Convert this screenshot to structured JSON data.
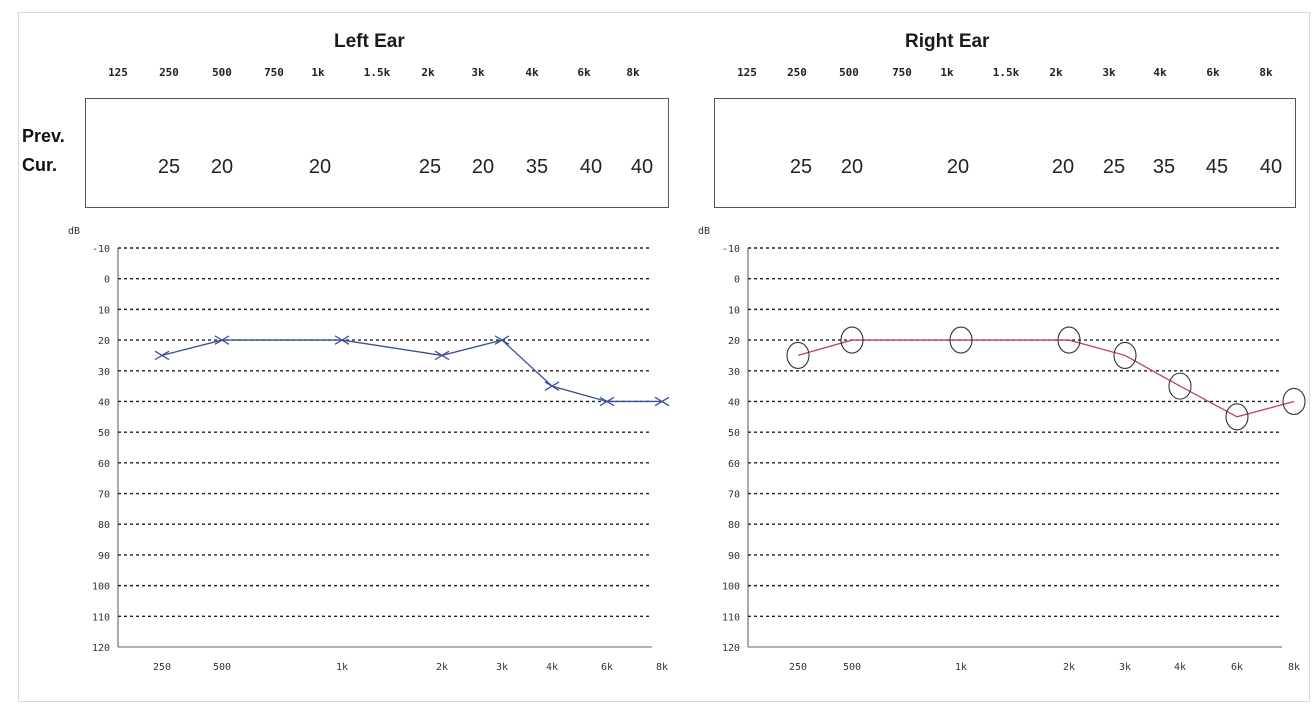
{
  "left": {
    "title": "Left Ear",
    "freq_labels": [
      "125",
      "250",
      "500",
      "750",
      "1k",
      "1.5k",
      "2k",
      "3k",
      "4k",
      "6k",
      "8k"
    ],
    "prev_label": "Prev.",
    "cur_label": "Cur.",
    "current_values": [
      {
        "freq": "250",
        "value": "25"
      },
      {
        "freq": "500",
        "value": "20"
      },
      {
        "freq": "1k",
        "value": "20"
      },
      {
        "freq": "2k",
        "value": "25"
      },
      {
        "freq": "3k",
        "value": "20"
      },
      {
        "freq": "4k",
        "value": "35"
      },
      {
        "freq": "6k",
        "value": "40"
      },
      {
        "freq": "8k",
        "value": "40"
      }
    ]
  },
  "right": {
    "title": "Right Ear",
    "freq_labels": [
      "125",
      "250",
      "500",
      "750",
      "1k",
      "1.5k",
      "2k",
      "3k",
      "4k",
      "6k",
      "8k"
    ],
    "current_values": [
      {
        "freq": "250",
        "value": "25"
      },
      {
        "freq": "500",
        "value": "20"
      },
      {
        "freq": "1k",
        "value": "20"
      },
      {
        "freq": "2k",
        "value": "20"
      },
      {
        "freq": "3k",
        "value": "25"
      },
      {
        "freq": "4k",
        "value": "35"
      },
      {
        "freq": "6k",
        "value": "45"
      },
      {
        "freq": "8k",
        "value": "40"
      }
    ]
  },
  "chart_data": [
    {
      "type": "line",
      "title": "Left Ear",
      "ylabel": "dB",
      "y_inverted": true,
      "ylim": [
        -10,
        120
      ],
      "yticks": [
        "-10",
        "0",
        "10",
        "20",
        "30",
        "40",
        "50",
        "60",
        "70",
        "80",
        "90",
        "100",
        "110",
        "120"
      ],
      "categories": [
        "250",
        "500",
        "1k",
        "2k",
        "3k",
        "4k",
        "6k",
        "8k"
      ],
      "series": [
        {
          "values": [
            25,
            20,
            20,
            25,
            20,
            35,
            40,
            40
          ],
          "marker": "x",
          "color": "#3a4f9a"
        }
      ],
      "grid": "dashed horizontal"
    },
    {
      "type": "line",
      "title": "Right Ear",
      "ylabel": "dB",
      "y_inverted": true,
      "ylim": [
        -10,
        120
      ],
      "yticks": [
        "-10",
        "0",
        "10",
        "20",
        "30",
        "40",
        "50",
        "60",
        "70",
        "80",
        "90",
        "100",
        "110",
        "120"
      ],
      "categories": [
        "250",
        "500",
        "1k",
        "2k",
        "3k",
        "4k",
        "6k",
        "8k"
      ],
      "series": [
        {
          "values": [
            25,
            20,
            20,
            20,
            25,
            35,
            45,
            40
          ],
          "marker": "o",
          "color": "#b5495b"
        }
      ],
      "grid": "dashed horizontal"
    }
  ]
}
